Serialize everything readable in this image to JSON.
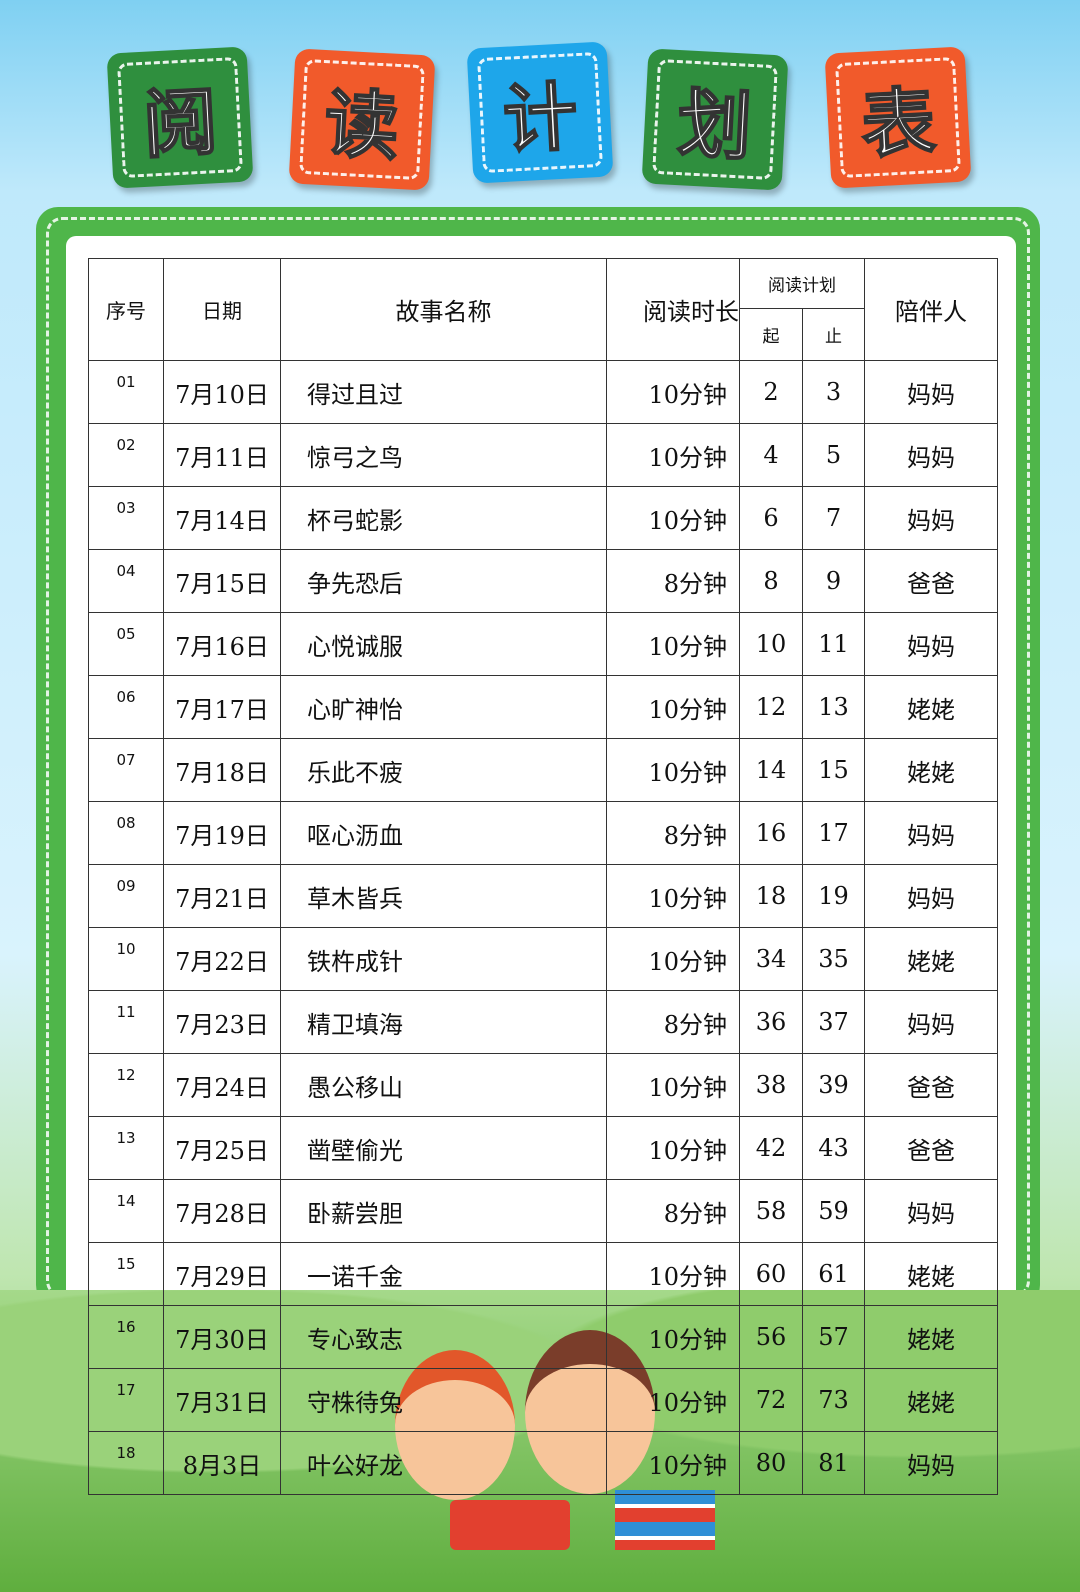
{
  "title": {
    "chars": [
      "阅",
      "读",
      "计",
      "划",
      "表"
    ],
    "tile_colors": [
      "#2f8f3e",
      "#f15a2b",
      "#1ea6ea",
      "#2f8f3e",
      "#f15a2b"
    ]
  },
  "table": {
    "headers": {
      "index": "序号",
      "date": "日期",
      "story": "故事名称",
      "duration": "阅读时长",
      "plan": "阅读计划",
      "plan_start": "起",
      "plan_end": "止",
      "companion": "陪伴人"
    },
    "rows": [
      {
        "index": "01",
        "date": "7月10日",
        "story": "得过且过",
        "duration": "10分钟",
        "start": "2",
        "end": "3",
        "companion": "妈妈"
      },
      {
        "index": "02",
        "date": "7月11日",
        "story": "惊弓之鸟",
        "duration": "10分钟",
        "start": "4",
        "end": "5",
        "companion": "妈妈"
      },
      {
        "index": "03",
        "date": "7月14日",
        "story": "杯弓蛇影",
        "duration": "10分钟",
        "start": "6",
        "end": "7",
        "companion": "妈妈"
      },
      {
        "index": "04",
        "date": "7月15日",
        "story": "争先恐后",
        "duration": "8分钟",
        "start": "8",
        "end": "9",
        "companion": "爸爸"
      },
      {
        "index": "05",
        "date": "7月16日",
        "story": "心悦诚服",
        "duration": "10分钟",
        "start": "10",
        "end": "11",
        "companion": "妈妈"
      },
      {
        "index": "06",
        "date": "7月17日",
        "story": "心旷神怡",
        "duration": "10分钟",
        "start": "12",
        "end": "13",
        "companion": "姥姥"
      },
      {
        "index": "07",
        "date": "7月18日",
        "story": "乐此不疲",
        "duration": "10分钟",
        "start": "14",
        "end": "15",
        "companion": "姥姥"
      },
      {
        "index": "08",
        "date": "7月19日",
        "story": "呕心沥血",
        "duration": "8分钟",
        "start": "16",
        "end": "17",
        "companion": "妈妈"
      },
      {
        "index": "09",
        "date": "7月21日",
        "story": "草木皆兵",
        "duration": "10分钟",
        "start": "18",
        "end": "19",
        "companion": "妈妈"
      },
      {
        "index": "10",
        "date": "7月22日",
        "story": "铁杵成针",
        "duration": "10分钟",
        "start": "34",
        "end": "35",
        "companion": "姥姥"
      },
      {
        "index": "11",
        "date": "7月23日",
        "story": "精卫填海",
        "duration": "8分钟",
        "start": "36",
        "end": "37",
        "companion": "妈妈"
      },
      {
        "index": "12",
        "date": "7月24日",
        "story": "愚公移山",
        "duration": "10分钟",
        "start": "38",
        "end": "39",
        "companion": "爸爸"
      },
      {
        "index": "13",
        "date": "7月25日",
        "story": "凿壁偷光",
        "duration": "10分钟",
        "start": "42",
        "end": "43",
        "companion": "爸爸"
      },
      {
        "index": "14",
        "date": "7月28日",
        "story": "卧薪尝胆",
        "duration": "8分钟",
        "start": "58",
        "end": "59",
        "companion": "妈妈"
      },
      {
        "index": "15",
        "date": "7月29日",
        "story": "一诺千金",
        "duration": "10分钟",
        "start": "60",
        "end": "61",
        "companion": "姥姥"
      },
      {
        "index": "16",
        "date": "7月30日",
        "story": "专心致志",
        "duration": "10分钟",
        "start": "56",
        "end": "57",
        "companion": "姥姥"
      },
      {
        "index": "17",
        "date": "7月31日",
        "story": "守株待兔",
        "duration": "10分钟",
        "start": "72",
        "end": "73",
        "companion": "姥姥"
      },
      {
        "index": "18",
        "date": "8月3日",
        "story": "叶公好龙",
        "duration": "10分钟",
        "start": "80",
        "end": "81",
        "companion": "妈妈"
      }
    ]
  },
  "colors": {
    "frame": "#4fb64a",
    "sky": "#7fd0f2"
  }
}
